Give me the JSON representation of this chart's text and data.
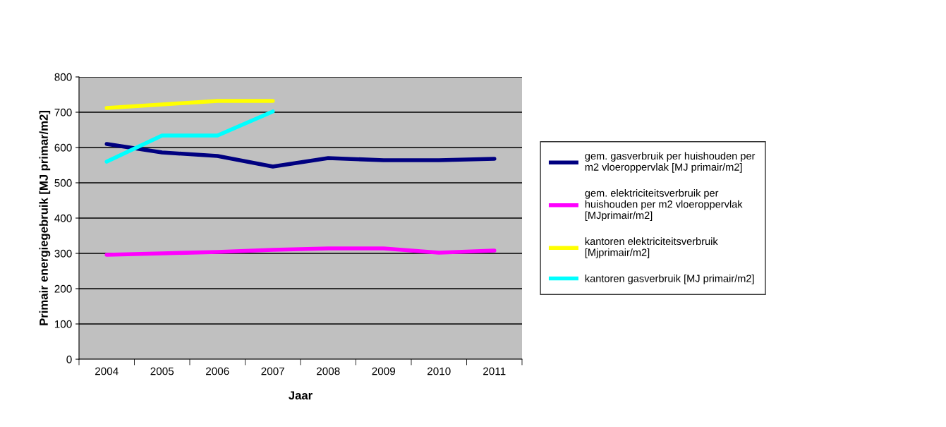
{
  "chart_data": {
    "type": "line",
    "xlabel": "Jaar",
    "ylabel": "Primair energiegebruik [MJ primar/m2]",
    "categories": [
      "2004",
      "2005",
      "2006",
      "2007",
      "2008",
      "2009",
      "2010",
      "2011"
    ],
    "series": [
      {
        "name": "gem. gasverbruik per huishouden per\nm2 vloeroppervlak [MJ primair/m2]",
        "color": "#000080",
        "values": [
          610,
          586,
          576,
          546,
          570,
          564,
          564,
          568
        ]
      },
      {
        "name": "gem. elektriciteitsverbruik per\nhuishouden per m2 vloeroppervlak\n[MJprimair/m2]",
        "color": "#ff00ff",
        "values": [
          296,
          300,
          304,
          310,
          314,
          314,
          302,
          308
        ]
      },
      {
        "name": "kantoren elektriciteitsverbruik\n[Mjprimair/m2]",
        "color": "#ffff00",
        "values": [
          712,
          722,
          732,
          732,
          null,
          null,
          null,
          null
        ]
      },
      {
        "name": "kantoren gasverbruik [MJ primair/m2]",
        "color": "#00ffff",
        "values": [
          560,
          634,
          634,
          702,
          null,
          null,
          null,
          null
        ]
      }
    ],
    "ylim": [
      0,
      800
    ],
    "yticks": [
      0,
      100,
      200,
      300,
      400,
      500,
      600,
      700,
      800
    ],
    "grid": "y",
    "legend": "right",
    "marker": "none",
    "line_style": "solid"
  }
}
